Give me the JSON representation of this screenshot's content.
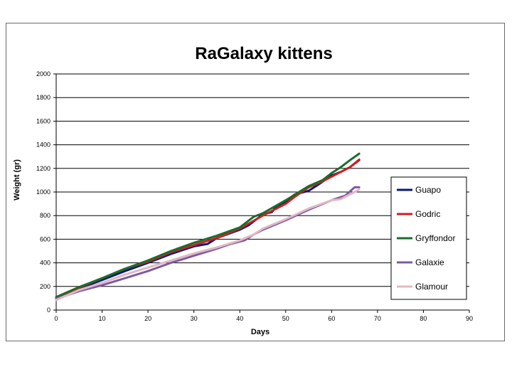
{
  "chart_data": {
    "type": "line",
    "title": "RaGalaxy kittens",
    "xlabel": "Days",
    "ylabel": "Weight (gr)",
    "xlim": [
      0,
      90
    ],
    "ylim": [
      0,
      2000
    ],
    "xticks": [
      0,
      10,
      20,
      30,
      40,
      50,
      60,
      70,
      80,
      90
    ],
    "yticks": [
      0,
      200,
      400,
      600,
      800,
      1000,
      1200,
      1400,
      1600,
      1800,
      2000
    ],
    "grid": "horizontal",
    "legend_position": "right",
    "series": [
      {
        "name": "Guapo",
        "color": "#0a1a7a",
        "points": [
          [
            0,
            105
          ],
          [
            5,
            180
          ],
          [
            10,
            255
          ],
          [
            15,
            330
          ],
          [
            20,
            400
          ],
          [
            25,
            475
          ],
          [
            30,
            540
          ],
          [
            33,
            560
          ],
          [
            35,
            610
          ],
          [
            40,
            680
          ],
          [
            42,
            720
          ],
          [
            45,
            810
          ],
          [
            47,
            830
          ],
          [
            48,
            880
          ],
          [
            50,
            920
          ],
          [
            52,
            980
          ],
          [
            55,
            1010
          ],
          [
            57,
            1060
          ],
          [
            60,
            1140
          ],
          [
            62,
            1170
          ],
          [
            64,
            1210
          ],
          [
            66,
            1270
          ]
        ]
      },
      {
        "name": "Godric",
        "color": "#cc1f1f",
        "points": [
          [
            0,
            100
          ],
          [
            5,
            190
          ],
          [
            10,
            270
          ],
          [
            15,
            350
          ],
          [
            20,
            410
          ],
          [
            25,
            490
          ],
          [
            30,
            550
          ],
          [
            35,
            610
          ],
          [
            40,
            690
          ],
          [
            45,
            800
          ],
          [
            50,
            900
          ],
          [
            52,
            960
          ],
          [
            55,
            1040
          ],
          [
            58,
            1090
          ],
          [
            60,
            1130
          ],
          [
            62,
            1170
          ],
          [
            64,
            1210
          ],
          [
            66,
            1275
          ]
        ]
      },
      {
        "name": "Gryffondor",
        "color": "#1a6e2a",
        "points": [
          [
            0,
            110
          ],
          [
            5,
            195
          ],
          [
            10,
            270
          ],
          [
            15,
            350
          ],
          [
            20,
            420
          ],
          [
            25,
            500
          ],
          [
            30,
            570
          ],
          [
            35,
            630
          ],
          [
            40,
            700
          ],
          [
            43,
            790
          ],
          [
            45,
            820
          ],
          [
            50,
            930
          ],
          [
            55,
            1050
          ],
          [
            58,
            1100
          ],
          [
            60,
            1160
          ],
          [
            62,
            1210
          ],
          [
            64,
            1270
          ],
          [
            66,
            1325
          ]
        ]
      },
      {
        "name": "Galaxie",
        "color": "#7b5ba6",
        "points": [
          [
            0,
            95
          ],
          [
            5,
            160
          ],
          [
            10,
            210
          ],
          [
            15,
            270
          ],
          [
            20,
            330
          ],
          [
            25,
            400
          ],
          [
            30,
            460
          ],
          [
            35,
            520
          ],
          [
            38,
            560
          ],
          [
            41,
            590
          ],
          [
            43,
            640
          ],
          [
            45,
            680
          ],
          [
            50,
            760
          ],
          [
            55,
            850
          ],
          [
            60,
            930
          ],
          [
            63,
            970
          ],
          [
            65,
            1040
          ],
          [
            66,
            1040
          ]
        ]
      },
      {
        "name": "Glamour",
        "color": "#e3b8c2",
        "points": [
          [
            0,
            85
          ],
          [
            5,
            170
          ],
          [
            10,
            230
          ],
          [
            15,
            300
          ],
          [
            20,
            360
          ],
          [
            25,
            420
          ],
          [
            30,
            480
          ],
          [
            35,
            530
          ],
          [
            40,
            590
          ],
          [
            43,
            640
          ],
          [
            45,
            690
          ],
          [
            50,
            770
          ],
          [
            55,
            860
          ],
          [
            60,
            930
          ],
          [
            62,
            940
          ],
          [
            65,
            1000
          ],
          [
            66,
            1020
          ]
        ]
      }
    ]
  }
}
